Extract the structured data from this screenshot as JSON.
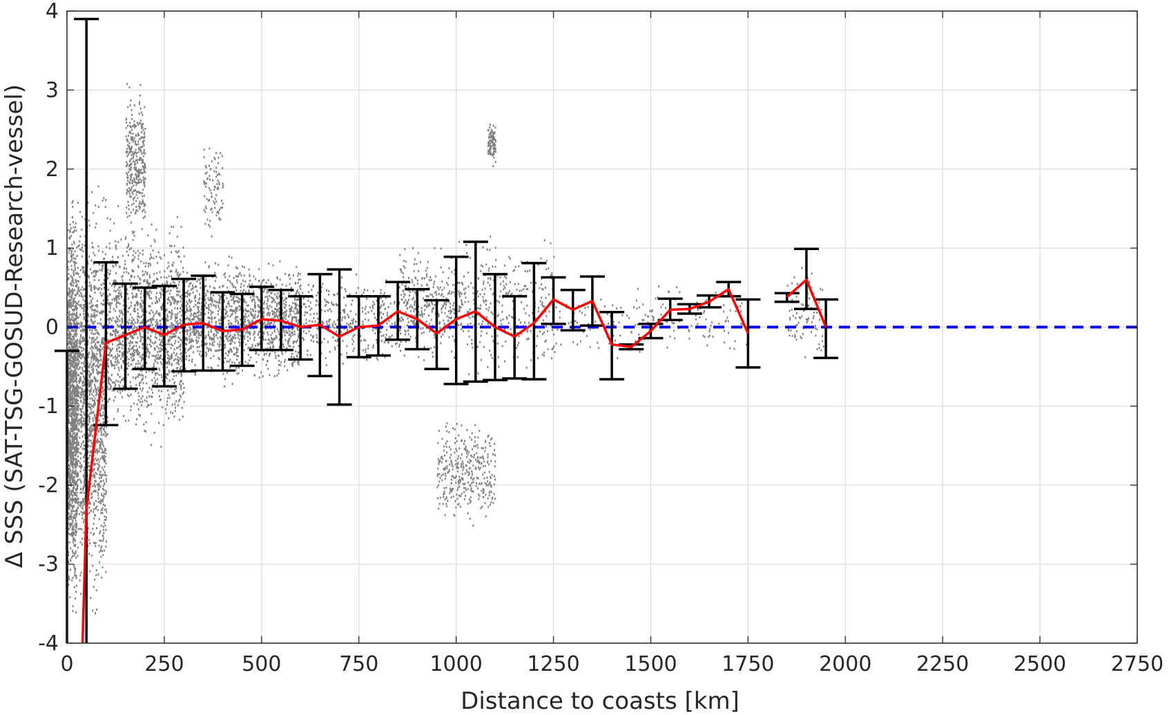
{
  "chart_data": {
    "type": "scatter",
    "title": "",
    "xlabel": "Distance to coasts [km]",
    "ylabel": "Δ SSS (SAT-TSG-GOSUD-Research-vessel)",
    "xlim": [
      0,
      2750
    ],
    "ylim": [
      -4,
      4
    ],
    "x_ticks": [
      0,
      250,
      500,
      750,
      1000,
      1250,
      1500,
      1750,
      2000,
      2250,
      2500,
      2750
    ],
    "y_ticks": [
      -4,
      -3,
      -2,
      -1,
      0,
      1,
      2,
      3,
      4
    ],
    "grid": true,
    "legend": "none",
    "colors": {
      "points": "#808080",
      "mean_line": "#ff0000",
      "error_bars": "#000000",
      "zero_line": "#0000ff",
      "grid": "#dcdcdc",
      "axes": "#262626"
    },
    "series": [
      {
        "kind": "binned_mean_line",
        "x": [
          50,
          100,
          150,
          200,
          250,
          300,
          350,
          400,
          450,
          500,
          550,
          600,
          650,
          700,
          750,
          800,
          850,
          900,
          950,
          1000,
          1050,
          1100,
          1150,
          1200,
          1250,
          1300,
          1350,
          1400,
          1450,
          1500,
          1550,
          1600,
          1650,
          1700,
          1750,
          null,
          1850,
          1900,
          1950
        ],
        "y": [
          -2.3,
          -0.2,
          -0.1,
          0.0,
          -0.1,
          0.03,
          0.05,
          -0.05,
          -0.03,
          0.1,
          0.08,
          0.0,
          0.03,
          -0.12,
          0.0,
          0.02,
          0.2,
          0.1,
          -0.08,
          0.1,
          0.2,
          0.0,
          -0.12,
          0.05,
          0.35,
          0.22,
          0.33,
          -0.22,
          -0.25,
          -0.05,
          0.22,
          0.23,
          0.32,
          0.48,
          -0.08,
          null,
          0.38,
          0.6,
          0.0
        ]
      },
      {
        "kind": "first_bin_line",
        "x": [
          0,
          25,
          40
        ],
        "y": [
          -4,
          -4,
          -4
        ]
      },
      {
        "kind": "zero_reference",
        "x": [
          0,
          2750
        ],
        "y": [
          0,
          0
        ]
      }
    ],
    "error_bars": [
      {
        "x": 0,
        "low": -4.0,
        "high": -0.3
      },
      {
        "x": 50,
        "low": -4.0,
        "high": 3.9
      },
      {
        "x": 100,
        "low": -1.24,
        "high": 0.82
      },
      {
        "x": 150,
        "low": -0.78,
        "high": 0.55
      },
      {
        "x": 200,
        "low": -0.53,
        "high": 0.5
      },
      {
        "x": 250,
        "low": -0.75,
        "high": 0.52
      },
      {
        "x": 300,
        "low": -0.56,
        "high": 0.61
      },
      {
        "x": 350,
        "low": -0.55,
        "high": 0.65
      },
      {
        "x": 400,
        "low": -0.55,
        "high": 0.44
      },
      {
        "x": 450,
        "low": -0.49,
        "high": 0.42
      },
      {
        "x": 500,
        "low": -0.29,
        "high": 0.51
      },
      {
        "x": 550,
        "low": -0.29,
        "high": 0.47
      },
      {
        "x": 600,
        "low": -0.41,
        "high": 0.39
      },
      {
        "x": 650,
        "low": -0.62,
        "high": 0.67
      },
      {
        "x": 700,
        "low": -0.98,
        "high": 0.73
      },
      {
        "x": 750,
        "low": -0.38,
        "high": 0.39
      },
      {
        "x": 800,
        "low": -0.36,
        "high": 0.39
      },
      {
        "x": 850,
        "low": -0.16,
        "high": 0.57
      },
      {
        "x": 900,
        "low": -0.28,
        "high": 0.48
      },
      {
        "x": 950,
        "low": -0.53,
        "high": 0.34
      },
      {
        "x": 1000,
        "low": -0.72,
        "high": 0.89
      },
      {
        "x": 1050,
        "low": -0.69,
        "high": 1.08
      },
      {
        "x": 1100,
        "low": -0.67,
        "high": 0.67
      },
      {
        "x": 1150,
        "low": -0.65,
        "high": 0.39
      },
      {
        "x": 1200,
        "low": -0.66,
        "high": 0.81
      },
      {
        "x": 1250,
        "low": 0.04,
        "high": 0.63
      },
      {
        "x": 1300,
        "low": -0.04,
        "high": 0.47
      },
      {
        "x": 1350,
        "low": 0.02,
        "high": 0.64
      },
      {
        "x": 1400,
        "low": -0.66,
        "high": 0.19
      },
      {
        "x": 1450,
        "low": -0.28,
        "high": -0.22
      },
      {
        "x": 1500,
        "low": -0.14,
        "high": 0.04
      },
      {
        "x": 1550,
        "low": 0.09,
        "high": 0.36
      },
      {
        "x": 1600,
        "low": 0.17,
        "high": 0.29
      },
      {
        "x": 1650,
        "low": 0.25,
        "high": 0.4
      },
      {
        "x": 1700,
        "low": 0.39,
        "high": 0.57
      },
      {
        "x": 1750,
        "low": -0.51,
        "high": 0.35
      },
      {
        "x": 1850,
        "low": 0.32,
        "high": 0.43
      },
      {
        "x": 1900,
        "low": 0.23,
        "high": 0.99
      },
      {
        "x": 1950,
        "low": -0.39,
        "high": 0.35
      }
    ],
    "scatter_density": [
      {
        "x": [
          0,
          25
        ],
        "y": [
          -4,
          2.0
        ],
        "density": "high"
      },
      {
        "x": [
          25,
          100
        ],
        "y": [
          -4,
          2.2
        ],
        "density": "high"
      },
      {
        "x": [
          100,
          300
        ],
        "y": [
          -1.6,
          1.6
        ],
        "density": "high"
      },
      {
        "x": [
          150,
          200
        ],
        "y": [
          1.0,
          3.2
        ],
        "density": "medium"
      },
      {
        "x": [
          300,
          600
        ],
        "y": [
          -0.8,
          1.0
        ],
        "density": "high"
      },
      {
        "x": [
          350,
          400
        ],
        "y": [
          1.0,
          2.5
        ],
        "density": "low"
      },
      {
        "x": [
          600,
          850
        ],
        "y": [
          -0.6,
          0.8
        ],
        "density": "medium"
      },
      {
        "x": [
          850,
          1000
        ],
        "y": [
          -0.6,
          1.2
        ],
        "density": "medium"
      },
      {
        "x": [
          950,
          1100
        ],
        "y": [
          -2.6,
          -1.0
        ],
        "density": "medium"
      },
      {
        "x": [
          1000,
          1250
        ],
        "y": [
          -0.8,
          1.3
        ],
        "density": "medium"
      },
      {
        "x": [
          1080,
          1100
        ],
        "y": [
          2.0,
          2.7
        ],
        "density": "low"
      },
      {
        "x": [
          1250,
          1500
        ],
        "y": [
          -0.5,
          0.6
        ],
        "density": "low"
      },
      {
        "x": [
          1500,
          1750
        ],
        "y": [
          -0.5,
          0.75
        ],
        "density": "low"
      },
      {
        "x": [
          1850,
          1950
        ],
        "y": [
          -0.5,
          0.9
        ],
        "density": "low"
      }
    ]
  }
}
